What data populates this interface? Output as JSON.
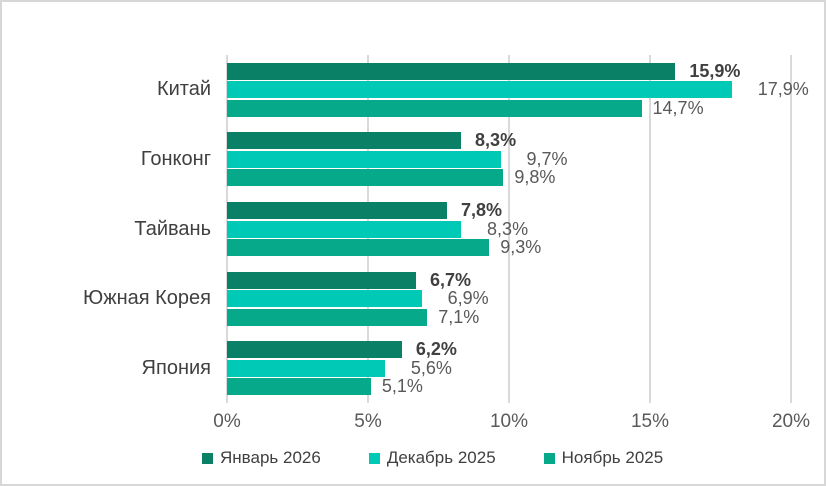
{
  "frame": {
    "background": "#ffffff",
    "border_color": "#d7d7d7"
  },
  "chart_data": {
    "type": "bar",
    "orientation": "horizontal",
    "categories": [
      "Китай",
      "Гонконг",
      "Тайвань",
      "Южная Корея",
      "Япония"
    ],
    "series": [
      {
        "name": "Январь 2026",
        "color": "#0a8066",
        "values": [
          15.9,
          8.3,
          7.8,
          6.7,
          6.2
        ],
        "labels": [
          "15,9%",
          "8,3%",
          "7,8%",
          "6,7%",
          "6,2%"
        ],
        "label_style": "bold"
      },
      {
        "name": "Декабрь 2025",
        "color": "#00c9b6",
        "values": [
          17.9,
          9.7,
          8.3,
          6.9,
          5.6
        ],
        "labels": [
          "17,9%",
          "9,7%",
          "8,3%",
          "6,9%",
          "5,6%"
        ],
        "label_style": "regular"
      },
      {
        "name": "Ноябрь 2025",
        "color": "#07a98b",
        "values": [
          14.7,
          9.8,
          9.3,
          7.1,
          5.1
        ],
        "labels": [
          "14,7%",
          "9,8%",
          "9,3%",
          "7,1%",
          "5,1%"
        ],
        "label_style": "regular"
      }
    ],
    "x_axis": {
      "min": 0,
      "max": 20,
      "tick_values": [
        0,
        5,
        10,
        15,
        20
      ],
      "tick_labels": [
        "0%",
        "5%",
        "10%",
        "15%",
        "20%"
      ]
    },
    "legend": {
      "position": "bottom",
      "entries": [
        "Январь 2026",
        "Декабрь 2025",
        "Ноябрь 2025"
      ]
    },
    "grid": true,
    "gridline_color": "#d9d9d9",
    "text_colors": {
      "category": "#404040",
      "tick": "#595959",
      "value_bold": "#404040",
      "value_regular": "#595959",
      "legend": "#404040"
    }
  }
}
